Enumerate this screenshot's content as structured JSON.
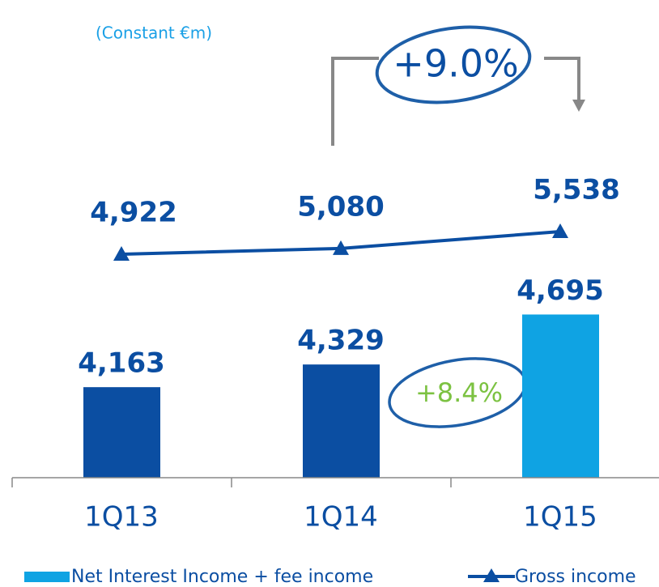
{
  "chart_data": {
    "type": "bar",
    "subtitle": "(Constant €m)",
    "categories": [
      "1Q13",
      "1Q14",
      "1Q15"
    ],
    "series": [
      {
        "name": "Net Interest Income + fee income",
        "type": "bar",
        "color": "#0fa3e3",
        "colors": [
          "#0b4ea2",
          "#0b4ea2",
          "#0fa3e3"
        ],
        "values": [
          4163,
          4329,
          4695
        ],
        "value_labels": [
          "4,163",
          "4,329",
          "4,695"
        ]
      },
      {
        "name": "Gross income",
        "type": "line",
        "axis": "y2",
        "color": "#0b4ea2",
        "values": [
          4922,
          5080,
          5538
        ],
        "value_labels": [
          "4,922",
          "5,080",
          "5,538"
        ]
      }
    ],
    "ylim": [
      3500,
      5000
    ],
    "y2lim": [
      0,
      10000
    ],
    "annotations": [
      "+9.0%",
      "+8.4%"
    ]
  }
}
